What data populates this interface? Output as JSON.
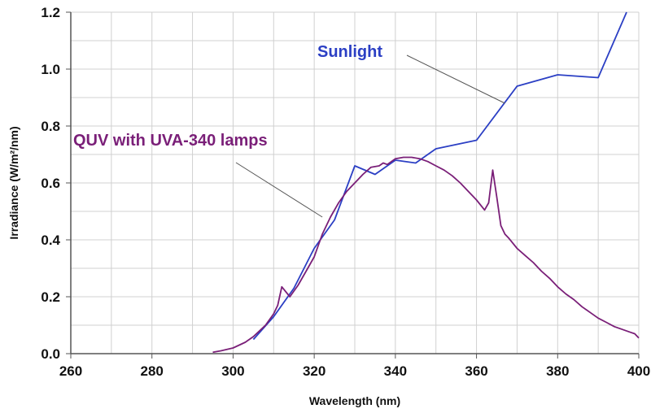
{
  "chart_data": {
    "type": "line",
    "title": "",
    "xlabel": "Wavelength (nm)",
    "ylabel": "Irradiance (W/m²/nm)",
    "xlim": [
      260,
      400
    ],
    "ylim": [
      0,
      1.2
    ],
    "x_ticks": [
      260,
      280,
      300,
      320,
      340,
      360,
      380,
      400
    ],
    "y_ticks": [
      "0.0",
      "0.2",
      "0.4",
      "0.6",
      "0.8",
      "1.0",
      "1.2"
    ],
    "grid": true,
    "series": [
      {
        "name": "Sunlight",
        "color": "#2b3fc4",
        "x": [
          305,
          310,
          315,
          320,
          325,
          330,
          335,
          340,
          345,
          350,
          360,
          370,
          380,
          390,
          397
        ],
        "y": [
          0.05,
          0.13,
          0.23,
          0.37,
          0.47,
          0.66,
          0.63,
          0.68,
          0.67,
          0.72,
          0.75,
          0.94,
          0.98,
          0.97,
          1.2
        ]
      },
      {
        "name": "QUV with UVA-340 lamps",
        "color": "#7a1f78",
        "x": [
          295,
          297,
          300,
          303,
          305,
          308,
          310,
          311,
          312,
          314,
          316,
          318,
          320,
          322,
          324,
          326,
          328,
          330,
          332,
          334,
          336,
          337,
          338,
          340,
          342,
          344,
          346,
          348,
          350,
          352,
          354,
          356,
          358,
          360,
          362,
          363,
          364,
          365,
          366,
          367,
          368,
          370,
          372,
          374,
          376,
          378,
          380,
          382,
          384,
          386,
          388,
          390,
          392,
          394,
          396,
          398,
          399,
          400
        ],
        "y": [
          0.005,
          0.01,
          0.02,
          0.04,
          0.06,
          0.1,
          0.14,
          0.17,
          0.235,
          0.2,
          0.24,
          0.29,
          0.34,
          0.42,
          0.48,
          0.53,
          0.57,
          0.6,
          0.63,
          0.655,
          0.66,
          0.67,
          0.665,
          0.685,
          0.69,
          0.69,
          0.685,
          0.675,
          0.66,
          0.645,
          0.625,
          0.6,
          0.57,
          0.54,
          0.505,
          0.53,
          0.645,
          0.55,
          0.45,
          0.42,
          0.405,
          0.37,
          0.345,
          0.32,
          0.29,
          0.265,
          0.235,
          0.21,
          0.19,
          0.165,
          0.145,
          0.125,
          0.11,
          0.095,
          0.085,
          0.075,
          0.07,
          0.055
        ]
      }
    ],
    "annotations": [
      {
        "text": "Sunlight",
        "color": "#2b3fc4",
        "points_to": [
          367,
          0.88
        ]
      },
      {
        "text": "QUV with UVA-340 lamps",
        "color": "#7a1f78",
        "points_to": [
          322,
          0.48
        ]
      }
    ]
  }
}
